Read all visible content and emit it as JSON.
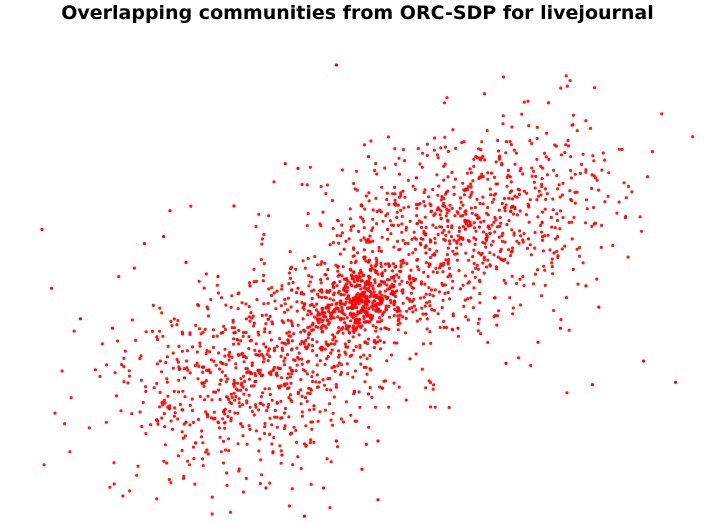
{
  "chart_data": {
    "type": "scatter",
    "title": "Overlapping communities from ORC-SDP for livejournal",
    "xlabel": "",
    "ylabel": "",
    "axes_visible": false,
    "grid": false,
    "legend": "none",
    "marker_color": "#ff0000",
    "series": [
      {
        "points": [
          [
            0.02,
            0.61
          ],
          [
            -0.24,
            0.58
          ],
          [
            0.47,
            0.43
          ],
          [
            -0.08,
            1.0
          ],
          [
            0.4,
            0.15
          ],
          [
            0.98,
            -0.35
          ],
          [
            0.88,
            -0.26
          ],
          [
            0.72,
            -0.36
          ],
          [
            -0.97,
            0.05
          ],
          [
            -1.0,
            0.3
          ],
          [
            -0.88,
            -0.08
          ],
          [
            -0.78,
            -0.12
          ],
          [
            -0.18,
            -0.92
          ],
          [
            -0.3,
            -0.8
          ],
          [
            -0.55,
            -0.52
          ],
          [
            -0.68,
            0.24
          ],
          [
            -0.6,
            0.38
          ],
          [
            -0.62,
            0.27
          ],
          [
            -0.4,
            0.4
          ],
          [
            -0.2,
            0.56
          ],
          [
            0.17,
            0.52
          ],
          [
            0.25,
            0.44
          ],
          [
            0.36,
            0.36
          ],
          [
            0.52,
            0.26
          ],
          [
            0.6,
            0.2
          ],
          [
            0.66,
            0.13
          ],
          [
            0.7,
            0.06
          ],
          [
            0.74,
            -0.03
          ],
          [
            0.62,
            -0.12
          ],
          [
            0.55,
            -0.18
          ],
          [
            0.45,
            -0.27
          ],
          [
            0.3,
            -0.12
          ],
          [
            0.2,
            -0.06
          ],
          [
            0.1,
            -0.02
          ],
          [
            0.0,
            0.0
          ],
          [
            -0.1,
            0.04
          ],
          [
            -0.2,
            0.05
          ],
          [
            -0.35,
            0.06
          ],
          [
            -0.45,
            0.1
          ],
          [
            -0.55,
            0.16
          ],
          [
            -0.05,
            -0.2
          ],
          [
            0.02,
            -0.4
          ],
          [
            0.05,
            -0.6
          ],
          [
            0.0,
            -0.72
          ],
          [
            -0.08,
            -0.6
          ],
          [
            -0.15,
            -0.45
          ],
          [
            -0.22,
            -0.3
          ],
          [
            -0.3,
            -0.2
          ],
          [
            -0.4,
            -0.14
          ],
          [
            -0.48,
            -0.3
          ],
          [
            -0.35,
            -0.55
          ],
          [
            -0.25,
            -0.66
          ],
          [
            -0.12,
            -0.8
          ],
          [
            0.05,
            -0.85
          ],
          [
            0.1,
            0.1
          ],
          [
            0.2,
            0.2
          ],
          [
            0.08,
            0.3
          ],
          [
            0.0,
            0.4
          ],
          [
            -0.05,
            0.25
          ],
          [
            0.15,
            -0.25
          ]
        ]
      }
    ],
    "xlim": [
      -1.1,
      1.1
    ],
    "ylim": [
      -1.1,
      1.1
    ]
  }
}
